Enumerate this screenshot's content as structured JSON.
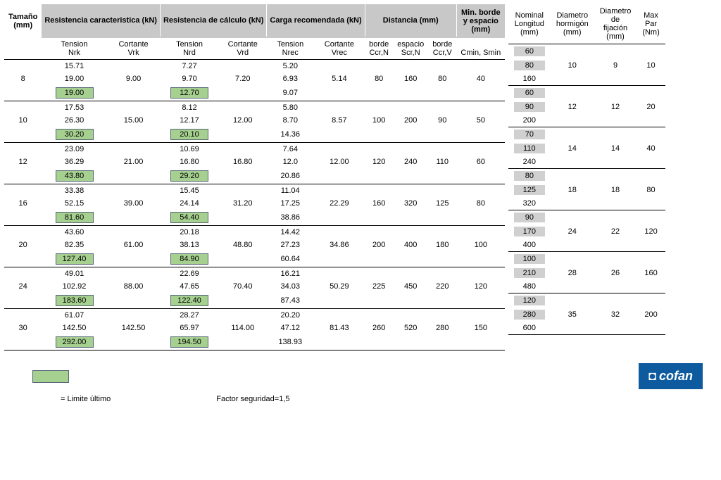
{
  "colors": {
    "header_bg": "#c8c8c8",
    "highlight_left": "#a6d08f",
    "highlight_right": "#d0d0d0",
    "logo_bg": "#0d5a9e",
    "logo_text": "#ffffff",
    "border": "#000000"
  },
  "left": {
    "groups": [
      "Resistencia caracteristica (kN)",
      "Resistencia de cálculo (kN)",
      "Carga recomendada (kN)",
      "Distancia (mm)",
      "Min. borde y espacio (mm)"
    ],
    "size_lbl": [
      "Tamaño",
      "(mm)"
    ],
    "sub1": [
      "Tension",
      "Cortante",
      "Tension",
      "Cortante",
      "Tension",
      "Cortante",
      "borde",
      "espacio",
      "borde",
      ""
    ],
    "sub2": [
      "Nrk",
      "Vrk",
      "Nrd",
      "Vrd",
      "Nrec",
      "Vrec",
      "Ccr,N",
      "Scr,N",
      "Ccr,V",
      "Cmin, Smin"
    ],
    "rows": [
      {
        "size": "8",
        "r1": [
          "15.71",
          "",
          "7.27",
          "",
          "5.20",
          "",
          "",
          "",
          "",
          ""
        ],
        "r2": [
          "19.00",
          "9.00",
          "9.70",
          "7.20",
          "6.93",
          "5.14",
          "80",
          "160",
          "80",
          "40"
        ],
        "r3": [
          "19.00",
          "",
          "12.70",
          "",
          "9.07",
          "",
          "",
          "",
          "",
          ""
        ],
        "hl1": 0,
        "hl3": null
      },
      {
        "size": "10",
        "r1": [
          "17.53",
          "",
          "8.12",
          "",
          "5.80",
          "",
          "",
          "",
          "",
          ""
        ],
        "r2": [
          "26.30",
          "15.00",
          "12.17",
          "12.00",
          "8.70",
          "8.57",
          "100",
          "200",
          "90",
          "50"
        ],
        "r3": [
          "30.20",
          "",
          "20.10",
          "",
          "14.36",
          "",
          "",
          "",
          "",
          ""
        ],
        "hl1": 0,
        "hl3": 2
      },
      {
        "size": "12",
        "r1": [
          "23.09",
          "",
          "10.69",
          "",
          "7.64",
          "",
          "",
          "",
          "",
          ""
        ],
        "r2": [
          "36.29",
          "21.00",
          "16.80",
          "16.80",
          "12.0",
          "12.00",
          "120",
          "240",
          "110",
          "60"
        ],
        "r3": [
          "43.80",
          "",
          "29.20",
          "",
          "20.86",
          "",
          "",
          "",
          "",
          ""
        ],
        "hl1": 0,
        "hl3": 2
      },
      {
        "size": "16",
        "r1": [
          "33.38",
          "",
          "15.45",
          "",
          "11.04",
          "",
          "",
          "",
          "",
          ""
        ],
        "r2": [
          "52.15",
          "39.00",
          "24.14",
          "31.20",
          "17.25",
          "22.29",
          "160",
          "320",
          "125",
          "80"
        ],
        "r3": [
          "81.60",
          "",
          "54.40",
          "",
          "38.86",
          "",
          "",
          "",
          "",
          ""
        ],
        "hl1": 0,
        "hl3": 2
      },
      {
        "size": "20",
        "r1": [
          "43.60",
          "",
          "20.18",
          "",
          "14.42",
          "",
          "",
          "",
          "",
          ""
        ],
        "r2": [
          "82.35",
          "61.00",
          "38.13",
          "48.80",
          "27.23",
          "34.86",
          "200",
          "400",
          "180",
          "100"
        ],
        "r3": [
          "127.40",
          "",
          "84.90",
          "",
          "60.64",
          "",
          "",
          "",
          "",
          ""
        ],
        "hl1": 0,
        "hl3": 2
      },
      {
        "size": "24",
        "r1": [
          "49.01",
          "",
          "22.69",
          "",
          "16.21",
          "",
          "",
          "",
          "",
          ""
        ],
        "r2": [
          "102.92",
          "88.00",
          "47.65",
          "70.40",
          "34.03",
          "50.29",
          "225",
          "450",
          "220",
          "120"
        ],
        "r3": [
          "183.60",
          "",
          "122.40",
          "",
          "87.43",
          "",
          "",
          "",
          "",
          ""
        ],
        "hl1": 0,
        "hl3": 2
      },
      {
        "size": "30",
        "r1": [
          "61.07",
          "",
          "28.27",
          "",
          "20.20",
          "",
          "",
          "",
          "",
          ""
        ],
        "r2": [
          "142.50",
          "142.50",
          "65.97",
          "114.00",
          "47.12",
          "81.43",
          "260",
          "520",
          "280",
          "150"
        ],
        "r3": [
          "292.00",
          "",
          "194.50",
          "",
          "138.93",
          "",
          "",
          "",
          "",
          ""
        ],
        "hl1": 0,
        "hl3": 2
      }
    ]
  },
  "right": {
    "headers": [
      [
        "Nominal",
        "Longitud",
        "(mm)"
      ],
      [
        "Diametro",
        "hormigón",
        "(mm)"
      ],
      [
        "Diametro",
        "de",
        "fijación",
        "(mm)"
      ],
      [
        "Max",
        "Par",
        "(Nm)"
      ]
    ],
    "rows": [
      {
        "r1": [
          "60",
          "",
          "",
          ""
        ],
        "r2": [
          "80",
          "10",
          "9",
          "10"
        ],
        "r3": [
          "160",
          "",
          "",
          ""
        ]
      },
      {
        "r1": [
          "60",
          "",
          "",
          ""
        ],
        "r2": [
          "90",
          "12",
          "12",
          "20"
        ],
        "r3": [
          "200",
          "",
          "",
          ""
        ]
      },
      {
        "r1": [
          "70",
          "",
          "",
          ""
        ],
        "r2": [
          "110",
          "14",
          "14",
          "40"
        ],
        "r3": [
          "240",
          "",
          "",
          ""
        ]
      },
      {
        "r1": [
          "80",
          "",
          "",
          ""
        ],
        "r2": [
          "125",
          "18",
          "18",
          "80"
        ],
        "r3": [
          "320",
          "",
          "",
          ""
        ]
      },
      {
        "r1": [
          "90",
          "",
          "",
          ""
        ],
        "r2": [
          "170",
          "24",
          "22",
          "120"
        ],
        "r3": [
          "400",
          "",
          "",
          ""
        ]
      },
      {
        "r1": [
          "100",
          "",
          "",
          ""
        ],
        "r2": [
          "210",
          "28",
          "26",
          "160"
        ],
        "r3": [
          "480",
          "",
          "",
          ""
        ]
      },
      {
        "r1": [
          "120",
          "",
          "",
          ""
        ],
        "r2": [
          "280",
          "35",
          "32",
          "200"
        ],
        "r3": [
          "600",
          "",
          "",
          ""
        ]
      }
    ]
  },
  "footer": {
    "legend": "= Limite último",
    "factor": "Factor seguridad=1,5",
    "logo": "cofan"
  }
}
